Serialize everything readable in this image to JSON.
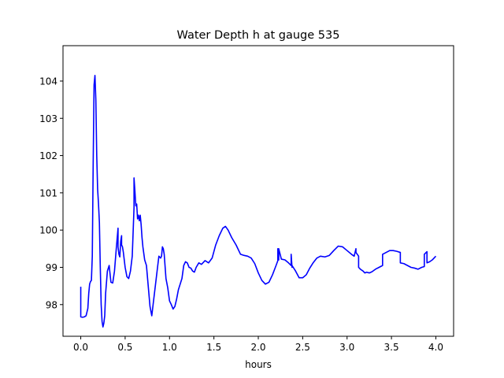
{
  "chart_data": {
    "type": "line",
    "title": "Water Depth h at gauge 535",
    "xlabel": "hours",
    "ylabel": "",
    "xlim": [
      -0.2,
      4.2
    ],
    "ylim": [
      97.15,
      104.95
    ],
    "xticks": [
      0.0,
      0.5,
      1.0,
      1.5,
      2.0,
      2.5,
      3.0,
      3.5,
      4.0
    ],
    "xtick_labels": [
      "0.0",
      "0.5",
      "1.0",
      "1.5",
      "2.0",
      "2.5",
      "3.0",
      "3.5",
      "4.0"
    ],
    "yticks": [
      98,
      99,
      100,
      101,
      102,
      103,
      104
    ],
    "ytick_labels": [
      "98",
      "99",
      "100",
      "101",
      "102",
      "103",
      "104"
    ],
    "grid": false,
    "series": [
      {
        "color": "#0000ff",
        "x": [
          0.0,
          0.0,
          0.02,
          0.04,
          0.06,
          0.08,
          0.09,
          0.1,
          0.11,
          0.12,
          0.13,
          0.14,
          0.15,
          0.16,
          0.17,
          0.18,
          0.19,
          0.2,
          0.21,
          0.22,
          0.23,
          0.24,
          0.25,
          0.26,
          0.27,
          0.28,
          0.3,
          0.32,
          0.34,
          0.36,
          0.38,
          0.4,
          0.42,
          0.42,
          0.43,
          0.44,
          0.45,
          0.46,
          0.46,
          0.47,
          0.48,
          0.5,
          0.52,
          0.54,
          0.56,
          0.58,
          0.6,
          0.6,
          0.61,
          0.62,
          0.63,
          0.64,
          0.65,
          0.66,
          0.67,
          0.68,
          0.69,
          0.7,
          0.72,
          0.74,
          0.76,
          0.78,
          0.8,
          0.82,
          0.84,
          0.86,
          0.88,
          0.9,
          0.91,
          0.92,
          0.93,
          0.94,
          0.96,
          0.98,
          1.0,
          1.02,
          1.04,
          1.06,
          1.08,
          1.1,
          1.12,
          1.14,
          1.16,
          1.18,
          1.2,
          1.22,
          1.24,
          1.26,
          1.28,
          1.3,
          1.33,
          1.36,
          1.4,
          1.44,
          1.48,
          1.52,
          1.56,
          1.6,
          1.63,
          1.66,
          1.7,
          1.75,
          1.8,
          1.84,
          1.88,
          1.92,
          1.96,
          2.0,
          2.04,
          2.08,
          2.12,
          2.16,
          2.2,
          2.22,
          2.22,
          2.23,
          2.23,
          2.26,
          2.3,
          2.34,
          2.37,
          2.37,
          2.38,
          2.38,
          2.42,
          2.46,
          2.5,
          2.54,
          2.58,
          2.62,
          2.66,
          2.7,
          2.75,
          2.8,
          2.85,
          2.9,
          2.95,
          3.0,
          3.05,
          3.08,
          3.1,
          3.1,
          3.13,
          3.13,
          3.15,
          3.18,
          3.2,
          3.22,
          3.25,
          3.28,
          3.32,
          3.36,
          3.4,
          3.4,
          3.44,
          3.48,
          3.52,
          3.56,
          3.6,
          3.6,
          3.64,
          3.68,
          3.72,
          3.76,
          3.8,
          3.84,
          3.87,
          3.87,
          3.9,
          3.9,
          3.93,
          3.96,
          4.0
        ],
        "y": [
          98.48,
          97.67,
          97.66,
          97.67,
          97.7,
          97.9,
          98.3,
          98.55,
          98.62,
          98.65,
          99.3,
          101.8,
          103.9,
          104.15,
          103.5,
          102.0,
          101.1,
          100.7,
          100.2,
          99.0,
          98.0,
          97.55,
          97.4,
          97.5,
          97.7,
          98.3,
          98.9,
          99.05,
          98.6,
          98.58,
          98.9,
          99.5,
          100.05,
          99.55,
          99.35,
          99.28,
          99.7,
          99.85,
          99.6,
          99.55,
          99.4,
          99.0,
          98.75,
          98.7,
          98.9,
          99.3,
          100.6,
          101.4,
          101.05,
          100.65,
          100.7,
          100.3,
          100.4,
          100.25,
          100.4,
          100.15,
          99.8,
          99.55,
          99.2,
          99.05,
          98.5,
          97.95,
          97.7,
          98.1,
          98.5,
          98.9,
          99.3,
          99.25,
          99.3,
          99.55,
          99.5,
          99.35,
          98.7,
          98.45,
          98.1,
          98.0,
          97.88,
          97.95,
          98.15,
          98.4,
          98.55,
          98.7,
          99.05,
          99.15,
          99.12,
          99.0,
          98.98,
          98.9,
          98.87,
          99.0,
          99.12,
          99.08,
          99.18,
          99.12,
          99.25,
          99.6,
          99.85,
          100.05,
          100.1,
          100.0,
          99.8,
          99.6,
          99.35,
          99.32,
          99.3,
          99.25,
          99.1,
          98.85,
          98.65,
          98.55,
          98.6,
          98.8,
          99.05,
          99.18,
          99.5,
          99.2,
          99.5,
          99.22,
          99.2,
          99.12,
          99.05,
          99.35,
          99.0,
          99.05,
          98.9,
          98.72,
          98.72,
          98.8,
          98.98,
          99.13,
          99.25,
          99.3,
          99.28,
          99.32,
          99.45,
          99.57,
          99.55,
          99.45,
          99.35,
          99.3,
          99.5,
          99.4,
          99.3,
          99.0,
          98.95,
          98.9,
          98.85,
          98.87,
          98.85,
          98.88,
          98.95,
          99.0,
          99.05,
          99.35,
          99.4,
          99.45,
          99.45,
          99.43,
          99.4,
          99.12,
          99.1,
          99.05,
          99.0,
          98.98,
          98.95,
          99.0,
          99.02,
          99.35,
          99.42,
          99.12,
          99.15,
          99.2,
          99.3
        ]
      }
    ]
  }
}
